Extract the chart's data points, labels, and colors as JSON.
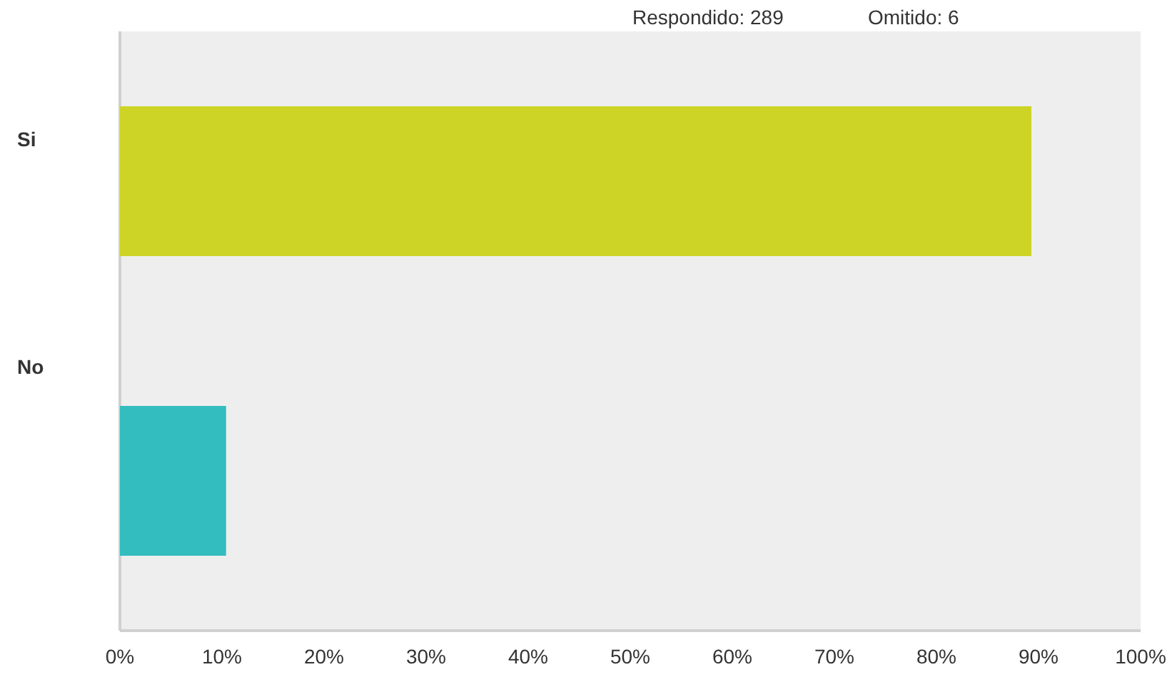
{
  "chart_data": {
    "type": "bar",
    "orientation": "horizontal",
    "categories": [
      "Si",
      "No"
    ],
    "values": [
      89.3,
      10.4
    ],
    "colors": [
      "#cdd425",
      "#33bdbf"
    ],
    "xlim": [
      0,
      100
    ],
    "xticks": [
      {
        "value": 0,
        "label": "0%"
      },
      {
        "value": 10,
        "label": "10%"
      },
      {
        "value": 20,
        "label": "20%"
      },
      {
        "value": 30,
        "label": "30%"
      },
      {
        "value": 40,
        "label": "40%"
      },
      {
        "value": 50,
        "label": "50%"
      },
      {
        "value": 60,
        "label": "60%"
      },
      {
        "value": 70,
        "label": "70%"
      },
      {
        "value": 80,
        "label": "80%"
      },
      {
        "value": 90,
        "label": "90%"
      },
      {
        "value": 100,
        "label": "100%"
      }
    ],
    "annotations": [
      "Respondido: 289",
      "Omitido: 6"
    ],
    "grid": false
  }
}
